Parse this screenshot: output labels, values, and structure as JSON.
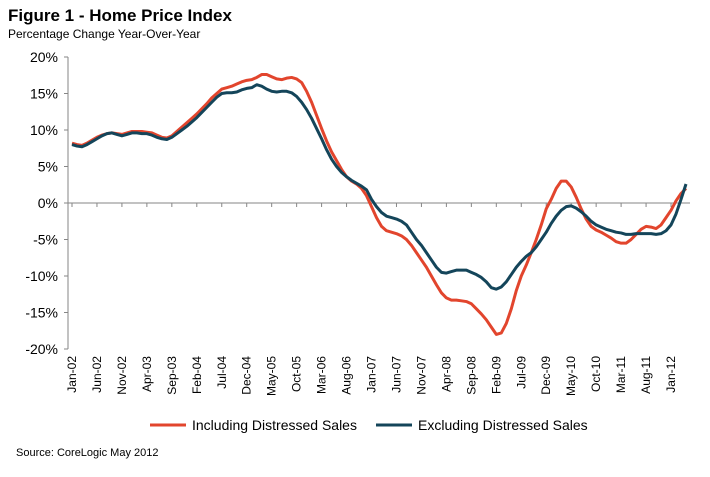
{
  "chart_data": {
    "type": "line",
    "title": "Figure 1 - Home Price Index",
    "subtitle": "Percentage Change Year-Over-Year",
    "source": "Source: CoreLogic May 2012",
    "categories": [
      "Jan-02",
      null,
      null,
      null,
      null,
      "Jun-02",
      null,
      null,
      null,
      null,
      "Nov-02",
      null,
      null,
      null,
      null,
      "Apr-03",
      null,
      null,
      null,
      null,
      "Sep-03",
      null,
      null,
      null,
      null,
      "Feb-04",
      null,
      null,
      null,
      null,
      "Jul-04",
      null,
      null,
      null,
      null,
      "Dec-04",
      null,
      null,
      null,
      null,
      "May-05",
      null,
      null,
      null,
      null,
      "Oct-05",
      null,
      null,
      null,
      null,
      "Mar-06",
      null,
      null,
      null,
      null,
      "Aug-06",
      null,
      null,
      null,
      null,
      "Jan-07",
      null,
      null,
      null,
      null,
      "Jun-07",
      null,
      null,
      null,
      null,
      "Nov-07",
      null,
      null,
      null,
      null,
      "Apr-08",
      null,
      null,
      null,
      null,
      "Sep-08",
      null,
      null,
      null,
      null,
      "Feb-09",
      null,
      null,
      null,
      null,
      "Jul-09",
      null,
      null,
      null,
      null,
      "Dec-09",
      null,
      null,
      null,
      null,
      "May-10",
      null,
      null,
      null,
      null,
      "Oct-10",
      null,
      null,
      null,
      null,
      "Mar-11",
      null,
      null,
      null,
      null,
      "Aug-11",
      null,
      null,
      null,
      null,
      "Jan-12",
      null,
      null,
      null
    ],
    "series": [
      {
        "name": "Including Distressed Sales",
        "color": "#e2452d",
        "values": [
          8.2,
          8.0,
          7.9,
          8.2,
          8.6,
          9.0,
          9.3,
          9.5,
          9.6,
          9.5,
          9.4,
          9.6,
          9.8,
          9.8,
          9.8,
          9.7,
          9.6,
          9.3,
          9.0,
          8.9,
          9.2,
          9.8,
          10.4,
          11.0,
          11.6,
          12.2,
          12.9,
          13.6,
          14.4,
          15.0,
          15.6,
          15.8,
          16.0,
          16.3,
          16.6,
          16.8,
          16.9,
          17.2,
          17.6,
          17.6,
          17.3,
          17.0,
          16.9,
          17.1,
          17.2,
          17.0,
          16.5,
          15.3,
          13.8,
          12.0,
          10.2,
          8.5,
          7.0,
          5.8,
          4.6,
          3.6,
          3.0,
          2.6,
          2.0,
          1.0,
          -0.5,
          -2.0,
          -3.2,
          -3.8,
          -4.0,
          -4.2,
          -4.5,
          -5.0,
          -5.8,
          -6.8,
          -7.8,
          -8.8,
          -10.0,
          -11.2,
          -12.3,
          -13.0,
          -13.3,
          -13.3,
          -13.4,
          -13.5,
          -13.8,
          -14.5,
          -15.2,
          -16.0,
          -17.0,
          -18.0,
          -17.8,
          -16.5,
          -14.5,
          -12.0,
          -10.0,
          -8.5,
          -6.8,
          -5.0,
          -3.0,
          -0.8,
          0.5,
          2.0,
          3.0,
          3.0,
          2.2,
          0.8,
          -0.8,
          -2.2,
          -3.2,
          -3.7,
          -4.0,
          -4.4,
          -4.8,
          -5.3,
          -5.5,
          -5.5,
          -5.0,
          -4.3,
          -3.6,
          -3.2,
          -3.3,
          -3.5,
          -3.0,
          -2.0,
          -1.0,
          0.3,
          1.3,
          2.0
        ]
      },
      {
        "name": "Excluding Distressed Sales",
        "color": "#14455a",
        "values": [
          8.0,
          7.8,
          7.7,
          8.0,
          8.4,
          8.8,
          9.2,
          9.5,
          9.6,
          9.4,
          9.2,
          9.4,
          9.6,
          9.6,
          9.5,
          9.5,
          9.3,
          9.0,
          8.8,
          8.7,
          9.0,
          9.5,
          10.0,
          10.5,
          11.1,
          11.7,
          12.4,
          13.1,
          13.8,
          14.5,
          15.0,
          15.1,
          15.1,
          15.2,
          15.5,
          15.7,
          15.8,
          16.2,
          16.0,
          15.6,
          15.3,
          15.2,
          15.3,
          15.3,
          15.1,
          14.6,
          13.8,
          12.8,
          11.6,
          10.2,
          8.8,
          7.3,
          6.0,
          5.0,
          4.2,
          3.6,
          3.1,
          2.7,
          2.3,
          1.8,
          0.5,
          -0.5,
          -1.3,
          -1.8,
          -2.0,
          -2.2,
          -2.5,
          -3.0,
          -4.0,
          -5.0,
          -5.8,
          -6.8,
          -7.8,
          -8.8,
          -9.5,
          -9.6,
          -9.4,
          -9.2,
          -9.2,
          -9.2,
          -9.5,
          -9.8,
          -10.2,
          -10.8,
          -11.6,
          -11.8,
          -11.5,
          -10.8,
          -9.8,
          -8.8,
          -8.0,
          -7.3,
          -6.8,
          -6.0,
          -5.0,
          -4.0,
          -2.8,
          -1.8,
          -1.0,
          -0.5,
          -0.4,
          -0.7,
          -1.2,
          -1.8,
          -2.5,
          -3.0,
          -3.3,
          -3.6,
          -3.8,
          -4.0,
          -4.1,
          -4.3,
          -4.3,
          -4.2,
          -4.2,
          -4.2,
          -4.2,
          -4.3,
          -4.2,
          -3.8,
          -3.0,
          -1.5,
          0.5,
          2.6
        ]
      }
    ],
    "ylim": [
      -20,
      20
    ],
    "yticks": [
      {
        "value": 20,
        "label": "20%"
      },
      {
        "value": 15,
        "label": "15%"
      },
      {
        "value": 10,
        "label": "10%"
      },
      {
        "value": 5,
        "label": "5%"
      },
      {
        "value": 0,
        "label": "0%"
      },
      {
        "value": -5,
        "label": "-5%"
      },
      {
        "value": -10,
        "label": "-10%"
      },
      {
        "value": -15,
        "label": "-15%"
      },
      {
        "value": -20,
        "label": "-20%"
      }
    ],
    "grid": false,
    "legend": "bottom"
  }
}
